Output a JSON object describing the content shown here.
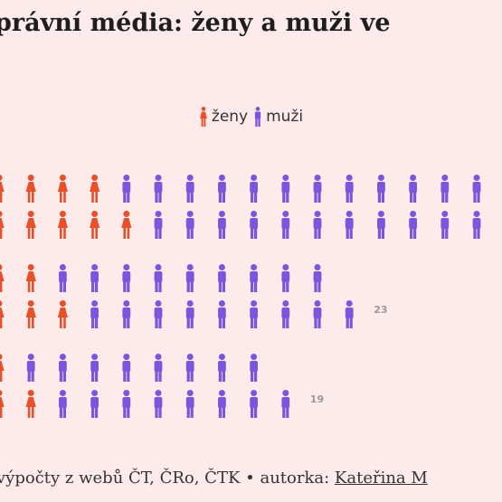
{
  "title": "právní média: ženy a muži ve",
  "legend": {
    "women": "ženy",
    "men": "muži"
  },
  "colors": {
    "women": "#e8502a",
    "men": "#7b56dc",
    "total_label": "#9a9a9a",
    "background": "#fdeaea"
  },
  "footer": {
    "prefix": "výpočty z webů ČT, ČRo, ČTK • autorka: ",
    "author": "Kateřina M"
  },
  "chart_data": {
    "type": "pictogram",
    "note": "each figure = 1 person; rows partially cropped on left/right",
    "rows": [
      {
        "women": 9,
        "men": 23,
        "total_label": ""
      },
      {
        "women": 5,
        "men": 18,
        "total_label": "23"
      },
      {
        "women": 3,
        "men": 16,
        "total_label": "19"
      }
    ]
  }
}
